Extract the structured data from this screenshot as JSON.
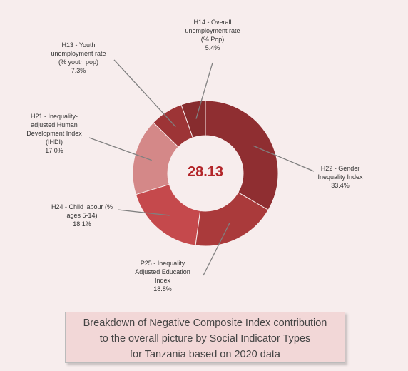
{
  "chart_data": {
    "type": "donut",
    "center_value": "28.13",
    "slices": [
      {
        "label_lines": [
          "H22 - Gender",
          "Inequality Index"
        ],
        "value_text": "33.4%",
        "value": 33.4,
        "color": "#8f2e31"
      },
      {
        "label_lines": [
          "P25 - Inequality",
          "Adjusted Education",
          "Index"
        ],
        "value_text": "18.8%",
        "value": 18.8,
        "color": "#aa3a3b"
      },
      {
        "label_lines": [
          "H24 - Child labour (%",
          "ages 5-14)"
        ],
        "value_text": "18.1%",
        "value": 18.1,
        "color": "#c5494c"
      },
      {
        "label_lines": [
          "H21 - Inequality-",
          "adjusted Human",
          "Development Index",
          "(IHDI)"
        ],
        "value_text": "17.0%",
        "value": 17.0,
        "color": "#d48888"
      },
      {
        "label_lines": [
          "H13 - Youth",
          "unemployment rate",
          "(% youth pop)"
        ],
        "value_text": "7.3%",
        "value": 7.3,
        "color": "#9d3436"
      },
      {
        "label_lines": [
          "H14 - Overall",
          "unemployment rate",
          "(% Pop)"
        ],
        "value_text": "5.4%",
        "value": 5.4,
        "color": "#872c2e"
      }
    ],
    "caption_lines": [
      "Breakdown of Negative Composite Index contribution",
      "to the overall picture by Social Indicator Types",
      "for Tanzania based on 2020 data"
    ]
  }
}
